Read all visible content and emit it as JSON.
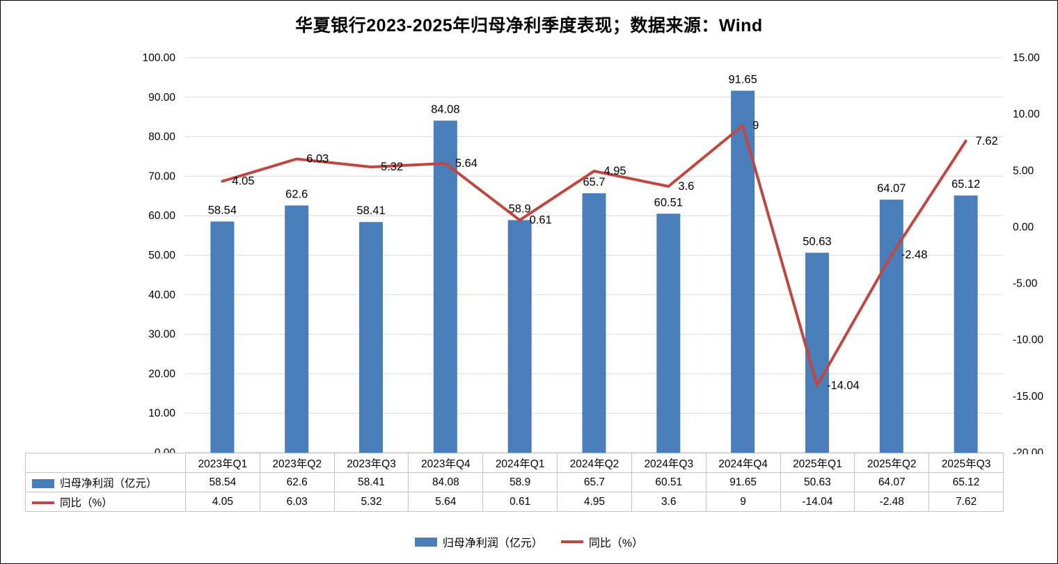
{
  "chart_data": {
    "type": "bar+line",
    "title": "华夏银行2023-2025年归母净利季度表现；数据来源：Wind",
    "categories": [
      "2023年Q1",
      "2023年Q2",
      "2023年Q3",
      "2023年Q4",
      "2024年Q1",
      "2024年Q2",
      "2024年Q3",
      "2024年Q4",
      "2025年Q1",
      "2025年Q2",
      "2025年Q3"
    ],
    "series": [
      {
        "name": "归母净利润（亿元）",
        "type": "bar",
        "color": "#4a7eba",
        "axis": "left",
        "values": [
          58.54,
          62.6,
          58.41,
          84.08,
          58.9,
          65.7,
          60.51,
          91.65,
          50.63,
          64.07,
          65.12
        ],
        "labels": [
          "58.54",
          "62.6",
          "58.41",
          "84.08",
          "58.9",
          "65.7",
          "60.51",
          "91.65",
          "50.63",
          "64.07",
          "65.12"
        ]
      },
      {
        "name": "同比（%）",
        "type": "line",
        "color": "#c0473f",
        "axis": "right",
        "values": [
          4.05,
          6.03,
          5.32,
          5.64,
          0.61,
          4.95,
          3.6,
          9,
          -14.04,
          -2.48,
          7.62
        ],
        "labels": [
          "4.05",
          "6.03",
          "5.32",
          "5.64",
          "0.61",
          "4.95",
          "3.6",
          "9",
          "-14.04",
          "-2.48",
          "7.62"
        ]
      }
    ],
    "left_axis": {
      "min": 0,
      "max": 100,
      "step": 10,
      "tick_labels": [
        "100.00",
        "90.00",
        "80.00",
        "70.00",
        "60.00",
        "50.00",
        "40.00",
        "30.00",
        "20.00",
        "10.00",
        "0.00"
      ]
    },
    "right_axis": {
      "min": -20,
      "max": 15,
      "step": 5,
      "tick_labels": [
        "15.00",
        "10.00",
        "5.00",
        "0.00",
        "-5.00",
        "-10.00",
        "-15.00",
        "-20.00"
      ]
    },
    "grid": true,
    "grid_color": "#d9d9d9",
    "legend_position": "bottom"
  }
}
